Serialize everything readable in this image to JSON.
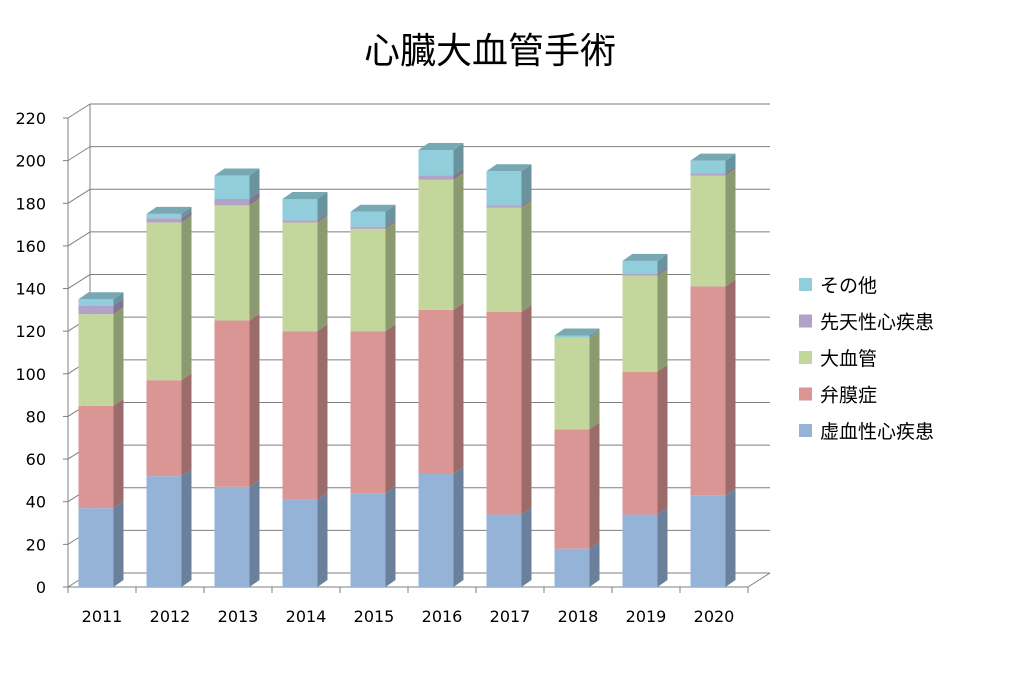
{
  "chart_data": {
    "type": "bar",
    "stacked": true,
    "title": "心臓大血管手術",
    "categories": [
      "2011",
      "2012",
      "2013",
      "2014",
      "2015",
      "2016",
      "2017",
      "2018",
      "2019",
      "2020"
    ],
    "ylim": [
      0,
      220
    ],
    "yticks": [
      "0",
      "20",
      "40",
      "60",
      "80",
      "100",
      "120",
      "140",
      "160",
      "180",
      "200",
      "220"
    ],
    "grid": true,
    "legend_position": "right",
    "series": [
      {
        "name": "虚血性心疾患",
        "color": "#95b3d7",
        "values": [
          37,
          52,
          47,
          41,
          44,
          53,
          34,
          18,
          34,
          43
        ]
      },
      {
        "name": "弁膜症",
        "color": "#d99694",
        "values": [
          48,
          45,
          78,
          79,
          76,
          77,
          95,
          56,
          67,
          98
        ]
      },
      {
        "name": "大血管",
        "color": "#c3d69b",
        "values": [
          43,
          74,
          54,
          51,
          48,
          61,
          49,
          43,
          45,
          52
        ]
      },
      {
        "name": "先天性心疾患",
        "color": "#b3a2c7",
        "values": [
          4,
          2,
          3,
          1,
          1,
          2,
          1,
          0,
          1,
          1
        ]
      },
      {
        "name": "その他",
        "color": "#92cddc",
        "values": [
          3,
          2,
          11,
          10,
          7,
          12,
          16,
          1,
          6,
          6
        ]
      }
    ]
  }
}
